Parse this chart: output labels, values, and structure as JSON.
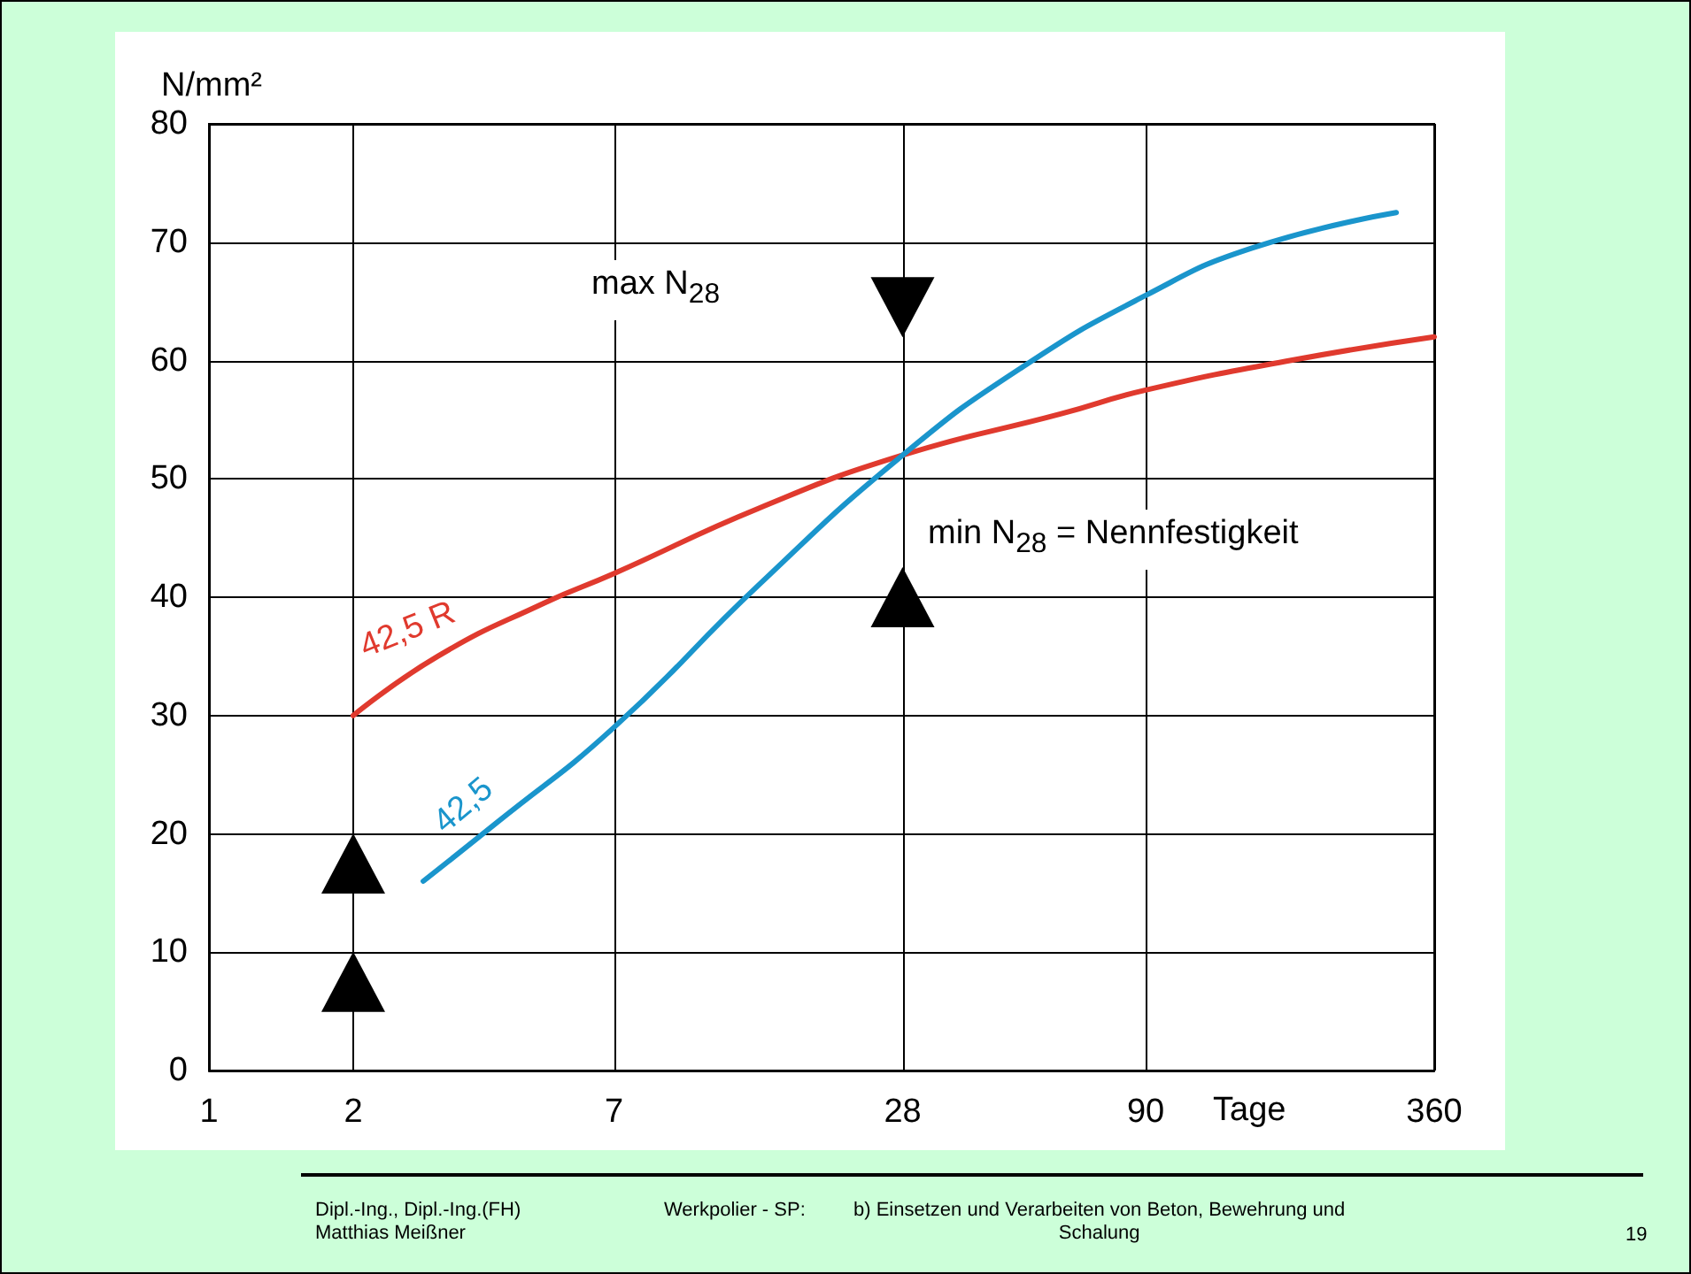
{
  "chart_data": {
    "type": "line",
    "xlabel": "Tage",
    "ylabel": "N/mm²",
    "log": "x",
    "xlim": [
      1,
      360
    ],
    "xticks": [
      1,
      2,
      7,
      28,
      90,
      360
    ],
    "ylim": [
      0,
      80
    ],
    "yticks": [
      0,
      10,
      20,
      30,
      40,
      50,
      60,
      70,
      80
    ],
    "grid": true,
    "legend": false,
    "marker": "none",
    "line_style": "solid",
    "series": [
      {
        "name": "42,5 R",
        "color": "#e03a2e",
        "x": [
          2,
          3,
          5,
          7,
          14,
          28,
          60,
          90,
          180,
          360
        ],
        "values": [
          30,
          35,
          39.5,
          42,
          47.5,
          52,
          55.5,
          57.5,
          60,
          62
        ]
      },
      {
        "name": "42,5",
        "color": "#1a95cc",
        "x": [
          2.8,
          4,
          7,
          14,
          28,
          50,
          90,
          150,
          300
        ],
        "values": [
          16,
          21,
          29,
          41,
          52,
          59.5,
          65.5,
          69.5,
          72.5
        ]
      },
      {
        "type": "scatter",
        "marker": "triangle",
        "color": "#000000",
        "x": [
          2,
          2,
          28
        ],
        "values": [
          7.5,
          17.5,
          40
        ]
      },
      {
        "type": "scatter",
        "marker": "triangle",
        "color": "#000000",
        "x": [
          28
        ],
        "values": [
          64.5
        ]
      }
    ],
    "annotations": [
      "max N$_{28}$",
      "min N$_{28}$ = Nennfestigkeit",
      "Dipl.-Ing., Dipl.-Ing.(FH)\nMatthias Meißner",
      "Werkpolier - SP:",
      "b) Einsetzen und Verarbeiten von Beton, Bewehrung und\nSchalung",
      "19"
    ]
  }
}
